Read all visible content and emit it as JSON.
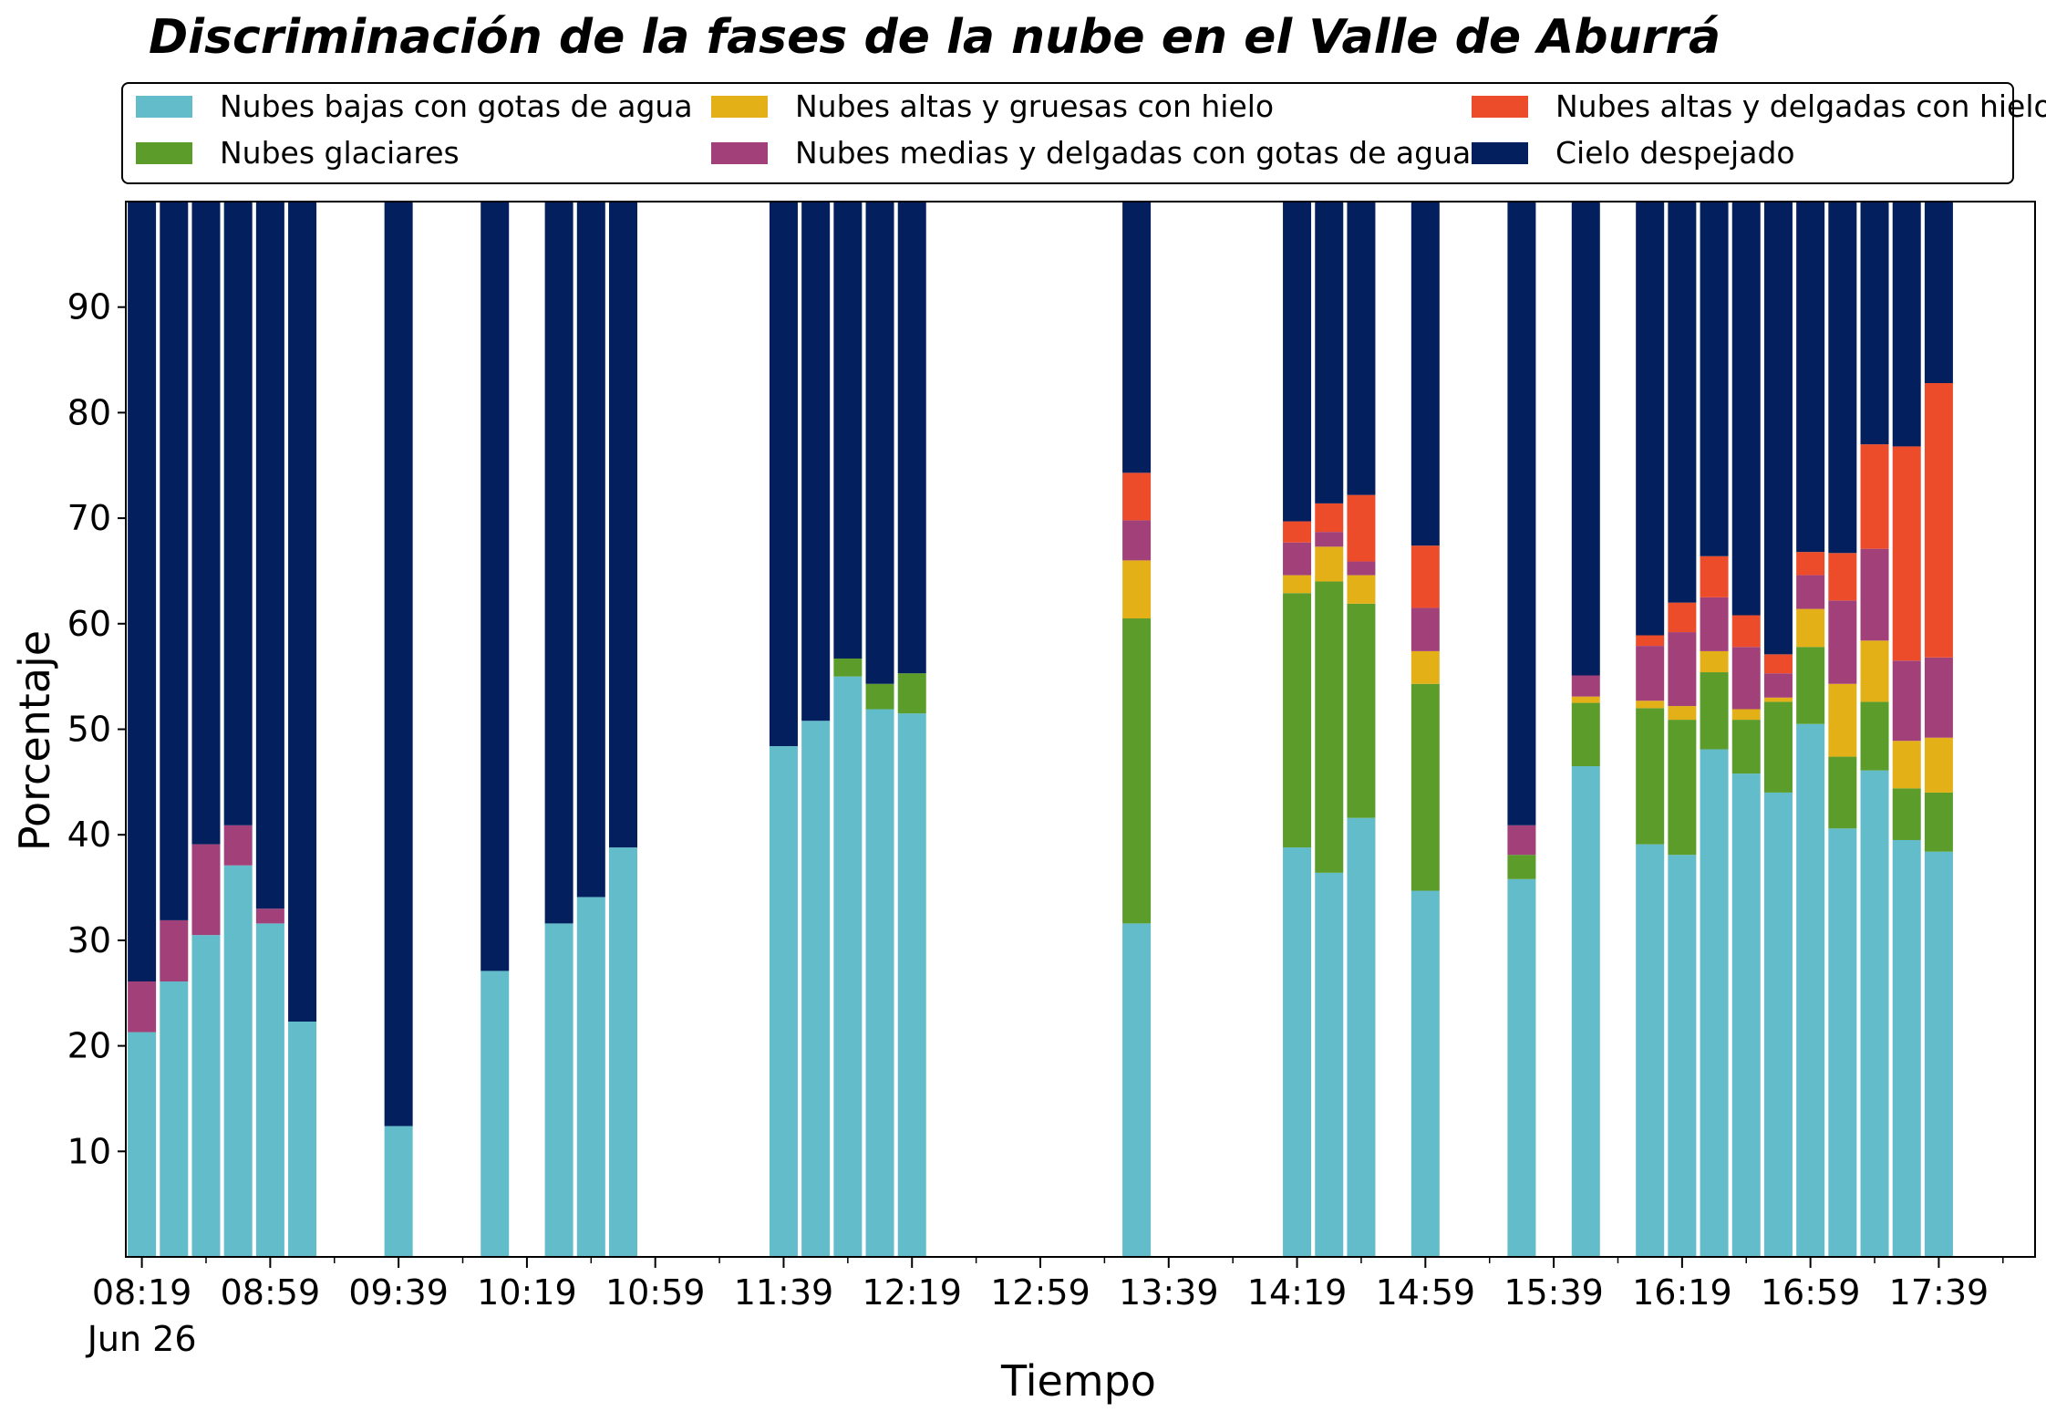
{
  "chart_data": {
    "type": "bar",
    "stacked": true,
    "title": "Discriminación de la fases de la nube en el Valle de Aburrá",
    "xlabel": "Tiempo",
    "ylabel": "Porcentaje",
    "ylim": [
      0,
      100
    ],
    "yticks": [
      10,
      20,
      30,
      40,
      50,
      60,
      70,
      80,
      90
    ],
    "x_tick_labels": [
      "08:19",
      "08:59",
      "09:39",
      "10:19",
      "10:59",
      "11:39",
      "12:19",
      "12:59",
      "13:39",
      "14:19",
      "14:59",
      "15:39",
      "16:19",
      "16:59",
      "17:39"
    ],
    "x_date_label": "Jun 26",
    "x_range": [
      "08:14",
      "18:09"
    ],
    "legend_position": "top",
    "grid": false,
    "categories": [
      "08:19",
      "08:29",
      "08:39",
      "08:49",
      "08:59",
      "09:09",
      "09:39",
      "10:09",
      "10:29",
      "10:39",
      "10:49",
      "11:39",
      "11:49",
      "11:59",
      "12:09",
      "12:19",
      "13:29",
      "14:19",
      "14:29",
      "14:39",
      "14:59",
      "15:29",
      "15:49",
      "16:09",
      "16:19",
      "16:29",
      "16:39",
      "16:49",
      "16:59",
      "17:09",
      "17:19",
      "17:29",
      "17:39"
    ],
    "series": [
      {
        "name": "Nubes bajas con gotas de agua",
        "color": "#63bcc9",
        "values": [
          21.3,
          26.1,
          30.5,
          37.1,
          31.6,
          22.3,
          12.4,
          27.1,
          31.6,
          34.1,
          38.8,
          48.4,
          50.8,
          55.0,
          51.9,
          51.5,
          31.6,
          38.8,
          36.4,
          41.6,
          34.7,
          35.8,
          46.5,
          39.1,
          38.1,
          48.1,
          45.8,
          44.0,
          50.5,
          40.6,
          46.1,
          39.5,
          38.4
        ]
      },
      {
        "name": "Nubes glaciares",
        "color": "#5b9c2b",
        "values": [
          0,
          0,
          0,
          0,
          0,
          0,
          0,
          0,
          0,
          0,
          0,
          0,
          0,
          1.7,
          2.4,
          3.8,
          28.9,
          24.1,
          27.6,
          20.3,
          19.6,
          2.3,
          6.0,
          12.9,
          12.8,
          7.3,
          5.1,
          8.6,
          7.3,
          6.8,
          6.5,
          4.9,
          5.6
        ]
      },
      {
        "name": "Nubes altas y gruesas con hielo",
        "color": "#e3b117",
        "values": [
          0,
          0,
          0,
          0,
          0,
          0,
          0,
          0,
          0,
          0,
          0,
          0,
          0,
          0,
          0,
          0,
          5.5,
          1.7,
          3.3,
          2.7,
          3.1,
          0,
          0.6,
          0.7,
          1.3,
          2.0,
          1.0,
          0.4,
          3.6,
          6.9,
          5.8,
          4.5,
          5.2
        ]
      },
      {
        "name": "Nubes medias y delgadas con gotas de agua",
        "color": "#a2407a",
        "values": [
          4.8,
          5.8,
          8.6,
          3.8,
          1.4,
          0,
          0,
          0,
          0,
          0,
          0,
          0,
          0,
          0,
          0,
          0,
          3.8,
          3.1,
          1.4,
          1.3,
          4.1,
          2.8,
          2.0,
          5.2,
          7.0,
          5.1,
          5.9,
          2.3,
          3.2,
          7.9,
          8.7,
          7.6,
          7.6
        ]
      },
      {
        "name": "Nubes altas y delgadas con hielo",
        "color": "#ec4c2a",
        "values": [
          0,
          0,
          0,
          0,
          0,
          0,
          0,
          0,
          0,
          0,
          0,
          0,
          0,
          0,
          0,
          0,
          4.5,
          2.0,
          2.7,
          6.3,
          5.9,
          0,
          0,
          1.0,
          2.8,
          3.9,
          3.0,
          1.8,
          2.2,
          4.5,
          9.9,
          20.3,
          26.0
        ]
      },
      {
        "name": "Cielo despejado",
        "color": "#031f5d",
        "values": [
          73.9,
          68.1,
          60.9,
          59.1,
          67.0,
          77.7,
          87.6,
          72.9,
          68.4,
          65.9,
          61.2,
          51.6,
          49.2,
          43.3,
          45.7,
          44.7,
          25.7,
          30.3,
          28.6,
          27.8,
          32.6,
          59.1,
          44.9,
          41.1,
          38.0,
          33.6,
          39.2,
          42.9,
          33.2,
          33.3,
          23.0,
          23.2,
          17.2
        ]
      }
    ]
  }
}
